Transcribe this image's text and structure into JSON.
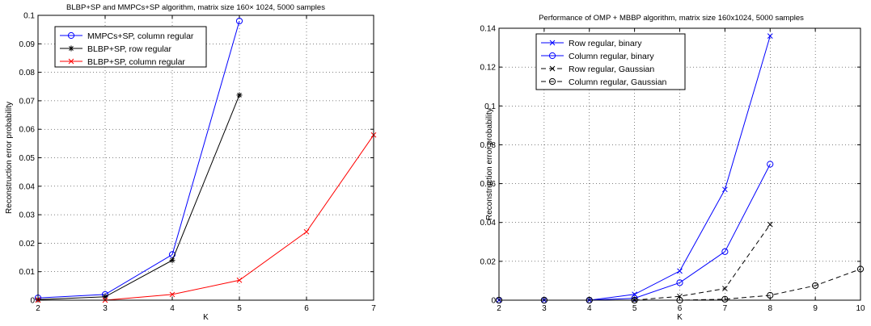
{
  "chart_data": [
    {
      "type": "line",
      "title": "BLBP+SP and MMPCs+SP algorithm, matrix size 160× 1024, 5000 samples",
      "xlabel": "K",
      "ylabel": "Reconstruction error probability",
      "xlim": [
        2,
        7
      ],
      "ylim": [
        0,
        0.1
      ],
      "xticks": [
        "2",
        "3",
        "4",
        "5",
        "6",
        "7"
      ],
      "yticks": [
        "0",
        "0.01",
        "0.02",
        "0.03",
        "0.04",
        "0.05",
        "0.06",
        "0.07",
        "0.08",
        "0.09",
        "0.1"
      ],
      "grid": true,
      "legend_position": "top-left",
      "series": [
        {
          "name": "MMPCs+SP, column regular",
          "color": "#0000ff",
          "marker": "circle",
          "dash": "solid",
          "x": [
            2,
            3,
            4,
            5
          ],
          "y": [
            0.0008,
            0.002,
            0.016,
            0.098
          ]
        },
        {
          "name": "BLBP+SP, row regular",
          "color": "#000000",
          "marker": "star",
          "dash": "solid",
          "x": [
            2,
            3,
            4,
            5
          ],
          "y": [
            0.0002,
            0.0012,
            0.014,
            0.072
          ]
        },
        {
          "name": "BLBP+SP, column regular",
          "color": "#ff0000",
          "marker": "x",
          "dash": "solid",
          "x": [
            2,
            3,
            4,
            5,
            6,
            7
          ],
          "y": [
            0,
            0,
            0.002,
            0.007,
            0.024,
            0.058
          ]
        }
      ]
    },
    {
      "type": "line",
      "title": "Performance of OMP + MBBP algorithm, matrix size 160x1024, 5000 samples",
      "xlabel": "K",
      "ylabel": "Reconstruction error probability",
      "xlim": [
        2,
        10
      ],
      "ylim": [
        0,
        0.14
      ],
      "xticks": [
        "2",
        "3",
        "4",
        "5",
        "6",
        "7",
        "8",
        "9",
        "10"
      ],
      "yticks": [
        "0",
        "0.02",
        "0.04",
        "0.06",
        "0.08",
        "0.1",
        "0.12",
        "0.14"
      ],
      "grid": true,
      "legend_position": "top-left",
      "series": [
        {
          "name": "Row regular, binary",
          "color": "#0000ff",
          "marker": "x",
          "dash": "solid",
          "x": [
            2,
            3,
            4,
            5,
            6,
            7,
            8
          ],
          "y": [
            0,
            0,
            0,
            0.003,
            0.015,
            0.057,
            0.136
          ]
        },
        {
          "name": "Column regular, binary",
          "color": "#0000ff",
          "marker": "circle",
          "dash": "solid",
          "x": [
            2,
            3,
            4,
            5,
            6,
            7,
            8
          ],
          "y": [
            0,
            0,
            0,
            0.001,
            0.009,
            0.025,
            0.07
          ]
        },
        {
          "name": "Row regular, Gaussian",
          "color": "#000000",
          "marker": "x",
          "dash": "dashed",
          "x": [
            5,
            6,
            7,
            8
          ],
          "y": [
            0,
            0.002,
            0.006,
            0.039
          ]
        },
        {
          "name": "Column regular, Gaussian",
          "color": "#000000",
          "marker": "circle",
          "dash": "dashed",
          "x": [
            2,
            3,
            4,
            5,
            6,
            7,
            8,
            9,
            10
          ],
          "y": [
            0,
            0,
            0,
            0,
            0,
            0.0005,
            0.0025,
            0.0075,
            0.016
          ]
        }
      ]
    }
  ]
}
